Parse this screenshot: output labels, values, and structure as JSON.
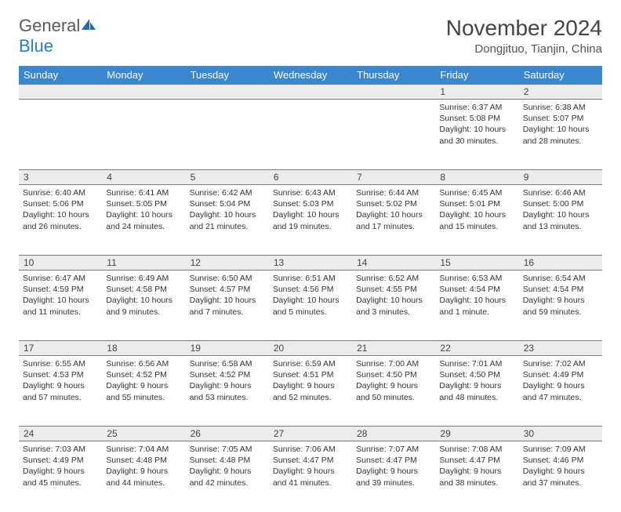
{
  "logo": {
    "part1": "General",
    "part2": "Blue"
  },
  "title": "November 2024",
  "subtitle": "Dongjituo, Tianjin, China",
  "colors": {
    "header_bg": "#3a87cf",
    "header_text": "#ffffff",
    "daynum_bg": "#ececec",
    "border": "#7a7a7a",
    "logo_gray": "#5a5a5a",
    "logo_blue": "#2b7cc4"
  },
  "weekdays": [
    "Sunday",
    "Monday",
    "Tuesday",
    "Wednesday",
    "Thursday",
    "Friday",
    "Saturday"
  ],
  "weeks": [
    [
      null,
      null,
      null,
      null,
      null,
      {
        "n": "1",
        "sunrise": "6:37 AM",
        "sunset": "5:08 PM",
        "day_l1": "Daylight: 10 hours",
        "day_l2": "and 30 minutes."
      },
      {
        "n": "2",
        "sunrise": "6:38 AM",
        "sunset": "5:07 PM",
        "day_l1": "Daylight: 10 hours",
        "day_l2": "and 28 minutes."
      }
    ],
    [
      {
        "n": "3",
        "sunrise": "6:40 AM",
        "sunset": "5:06 PM",
        "day_l1": "Daylight: 10 hours",
        "day_l2": "and 26 minutes."
      },
      {
        "n": "4",
        "sunrise": "6:41 AM",
        "sunset": "5:05 PM",
        "day_l1": "Daylight: 10 hours",
        "day_l2": "and 24 minutes."
      },
      {
        "n": "5",
        "sunrise": "6:42 AM",
        "sunset": "5:04 PM",
        "day_l1": "Daylight: 10 hours",
        "day_l2": "and 21 minutes."
      },
      {
        "n": "6",
        "sunrise": "6:43 AM",
        "sunset": "5:03 PM",
        "day_l1": "Daylight: 10 hours",
        "day_l2": "and 19 minutes."
      },
      {
        "n": "7",
        "sunrise": "6:44 AM",
        "sunset": "5:02 PM",
        "day_l1": "Daylight: 10 hours",
        "day_l2": "and 17 minutes."
      },
      {
        "n": "8",
        "sunrise": "6:45 AM",
        "sunset": "5:01 PM",
        "day_l1": "Daylight: 10 hours",
        "day_l2": "and 15 minutes."
      },
      {
        "n": "9",
        "sunrise": "6:46 AM",
        "sunset": "5:00 PM",
        "day_l1": "Daylight: 10 hours",
        "day_l2": "and 13 minutes."
      }
    ],
    [
      {
        "n": "10",
        "sunrise": "6:47 AM",
        "sunset": "4:59 PM",
        "day_l1": "Daylight: 10 hours",
        "day_l2": "and 11 minutes."
      },
      {
        "n": "11",
        "sunrise": "6:49 AM",
        "sunset": "4:58 PM",
        "day_l1": "Daylight: 10 hours",
        "day_l2": "and 9 minutes."
      },
      {
        "n": "12",
        "sunrise": "6:50 AM",
        "sunset": "4:57 PM",
        "day_l1": "Daylight: 10 hours",
        "day_l2": "and 7 minutes."
      },
      {
        "n": "13",
        "sunrise": "6:51 AM",
        "sunset": "4:56 PM",
        "day_l1": "Daylight: 10 hours",
        "day_l2": "and 5 minutes."
      },
      {
        "n": "14",
        "sunrise": "6:52 AM",
        "sunset": "4:55 PM",
        "day_l1": "Daylight: 10 hours",
        "day_l2": "and 3 minutes."
      },
      {
        "n": "15",
        "sunrise": "6:53 AM",
        "sunset": "4:54 PM",
        "day_l1": "Daylight: 10 hours",
        "day_l2": "and 1 minute."
      },
      {
        "n": "16",
        "sunrise": "6:54 AM",
        "sunset": "4:54 PM",
        "day_l1": "Daylight: 9 hours",
        "day_l2": "and 59 minutes."
      }
    ],
    [
      {
        "n": "17",
        "sunrise": "6:55 AM",
        "sunset": "4:53 PM",
        "day_l1": "Daylight: 9 hours",
        "day_l2": "and 57 minutes."
      },
      {
        "n": "18",
        "sunrise": "6:56 AM",
        "sunset": "4:52 PM",
        "day_l1": "Daylight: 9 hours",
        "day_l2": "and 55 minutes."
      },
      {
        "n": "19",
        "sunrise": "6:58 AM",
        "sunset": "4:52 PM",
        "day_l1": "Daylight: 9 hours",
        "day_l2": "and 53 minutes."
      },
      {
        "n": "20",
        "sunrise": "6:59 AM",
        "sunset": "4:51 PM",
        "day_l1": "Daylight: 9 hours",
        "day_l2": "and 52 minutes."
      },
      {
        "n": "21",
        "sunrise": "7:00 AM",
        "sunset": "4:50 PM",
        "day_l1": "Daylight: 9 hours",
        "day_l2": "and 50 minutes."
      },
      {
        "n": "22",
        "sunrise": "7:01 AM",
        "sunset": "4:50 PM",
        "day_l1": "Daylight: 9 hours",
        "day_l2": "and 48 minutes."
      },
      {
        "n": "23",
        "sunrise": "7:02 AM",
        "sunset": "4:49 PM",
        "day_l1": "Daylight: 9 hours",
        "day_l2": "and 47 minutes."
      }
    ],
    [
      {
        "n": "24",
        "sunrise": "7:03 AM",
        "sunset": "4:49 PM",
        "day_l1": "Daylight: 9 hours",
        "day_l2": "and 45 minutes."
      },
      {
        "n": "25",
        "sunrise": "7:04 AM",
        "sunset": "4:48 PM",
        "day_l1": "Daylight: 9 hours",
        "day_l2": "and 44 minutes."
      },
      {
        "n": "26",
        "sunrise": "7:05 AM",
        "sunset": "4:48 PM",
        "day_l1": "Daylight: 9 hours",
        "day_l2": "and 42 minutes."
      },
      {
        "n": "27",
        "sunrise": "7:06 AM",
        "sunset": "4:47 PM",
        "day_l1": "Daylight: 9 hours",
        "day_l2": "and 41 minutes."
      },
      {
        "n": "28",
        "sunrise": "7:07 AM",
        "sunset": "4:47 PM",
        "day_l1": "Daylight: 9 hours",
        "day_l2": "and 39 minutes."
      },
      {
        "n": "29",
        "sunrise": "7:08 AM",
        "sunset": "4:47 PM",
        "day_l1": "Daylight: 9 hours",
        "day_l2": "and 38 minutes."
      },
      {
        "n": "30",
        "sunrise": "7:09 AM",
        "sunset": "4:46 PM",
        "day_l1": "Daylight: 9 hours",
        "day_l2": "and 37 minutes."
      }
    ]
  ]
}
